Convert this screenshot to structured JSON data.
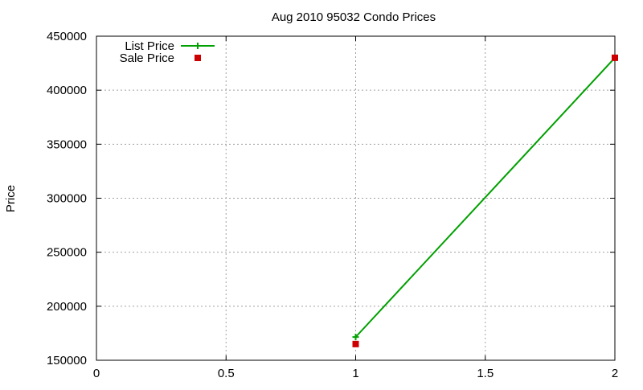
{
  "chart_data": {
    "type": "line",
    "title": "Aug 2010 95032 Condo Prices",
    "xlabel": "",
    "ylabel": "Price",
    "xlim": [
      0,
      2
    ],
    "ylim": [
      150000,
      450000
    ],
    "x_ticks": [
      "0",
      "0.5",
      "1",
      "1.5",
      "2"
    ],
    "y_ticks": [
      "150000",
      "200000",
      "250000",
      "300000",
      "350000",
      "400000",
      "450000"
    ],
    "grid": true,
    "legend_position": "top-left",
    "series": [
      {
        "name": "List Price",
        "style": "lines+points",
        "marker": "plus",
        "color": "#00a000",
        "x": [
          1,
          2
        ],
        "values": [
          171500,
          430000
        ]
      },
      {
        "name": "Sale Price",
        "style": "points",
        "marker": "square",
        "color": "#cc0000",
        "x": [
          1,
          2
        ],
        "values": [
          165000,
          430000
        ]
      }
    ]
  }
}
